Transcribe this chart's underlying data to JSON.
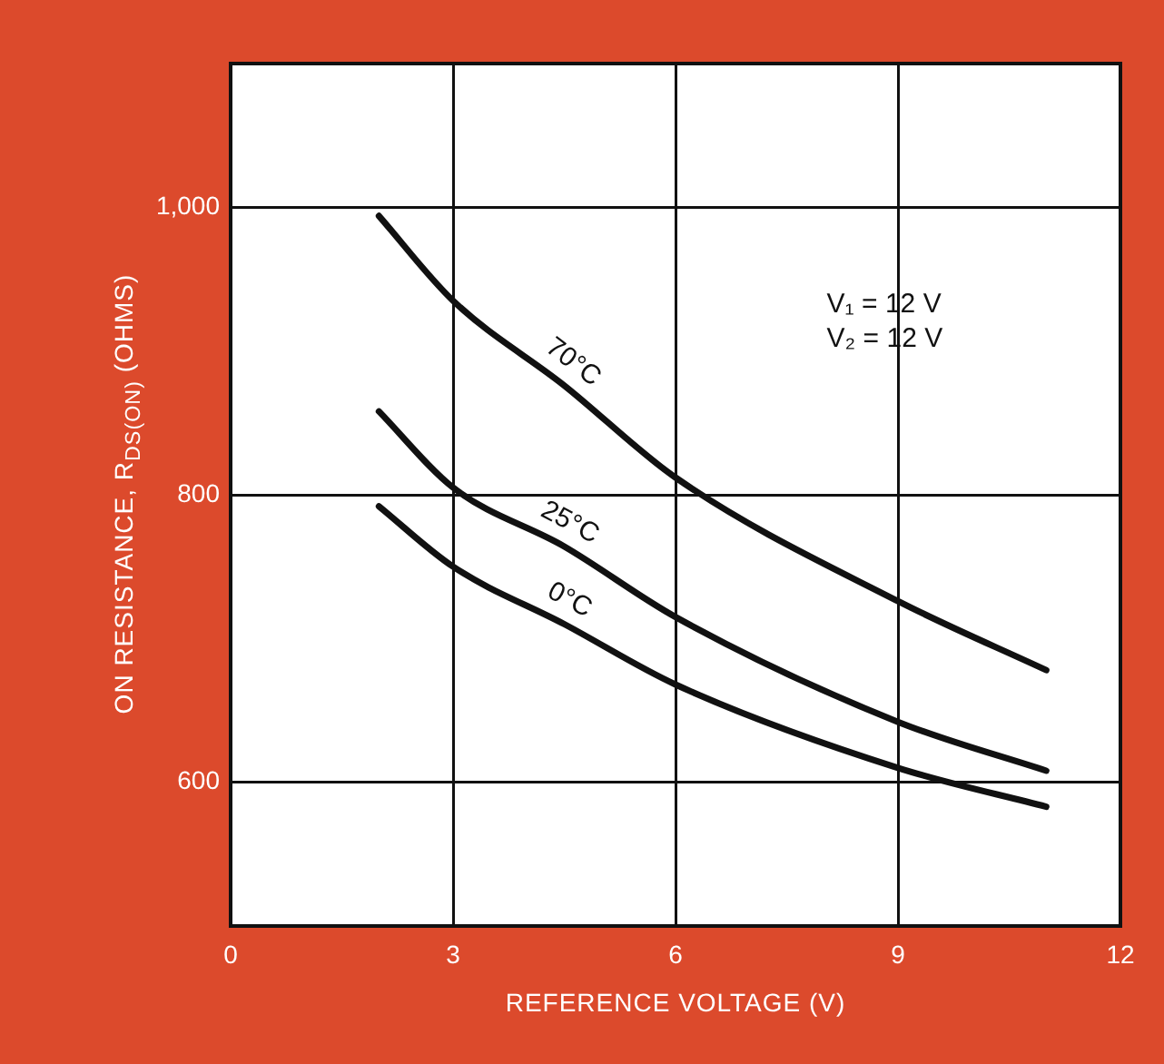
{
  "chart_data": {
    "type": "line",
    "xlabel": "REFERENCE VOLTAGE (V)",
    "ylabel": "ON RESISTANCE, R$_{DS(ON)}$ (OHMS)",
    "xlim": [
      0,
      12
    ],
    "xticks": [
      0,
      3,
      6,
      9,
      12
    ],
    "ylim": [
      500,
      1100
    ],
    "yticks": [
      {
        "value": 600,
        "label": "600"
      },
      {
        "value": 800,
        "label": "800"
      },
      {
        "value": 1000,
        "label": "1,000"
      }
    ],
    "grid": true,
    "legend": false,
    "marker": "none",
    "line_style": "solid",
    "annotations": [
      "V₁ = 12 V",
      "V₂ = 12 V"
    ],
    "series": [
      {
        "name": "70°C",
        "color": "#111111",
        "x": [
          2,
          3,
          4.5,
          6,
          9,
          11
        ],
        "values": [
          994,
          935,
          876,
          812,
          726,
          678
        ]
      },
      {
        "name": "25°C",
        "color": "#111111",
        "x": [
          2,
          3,
          4.5,
          6,
          9,
          11
        ],
        "values": [
          858,
          805,
          764,
          715,
          642,
          608
        ]
      },
      {
        "name": "0°C",
        "color": "#111111",
        "x": [
          2,
          3,
          4.5,
          6,
          9,
          11
        ],
        "values": [
          792,
          750,
          710,
          668,
          610,
          583
        ]
      }
    ]
  }
}
